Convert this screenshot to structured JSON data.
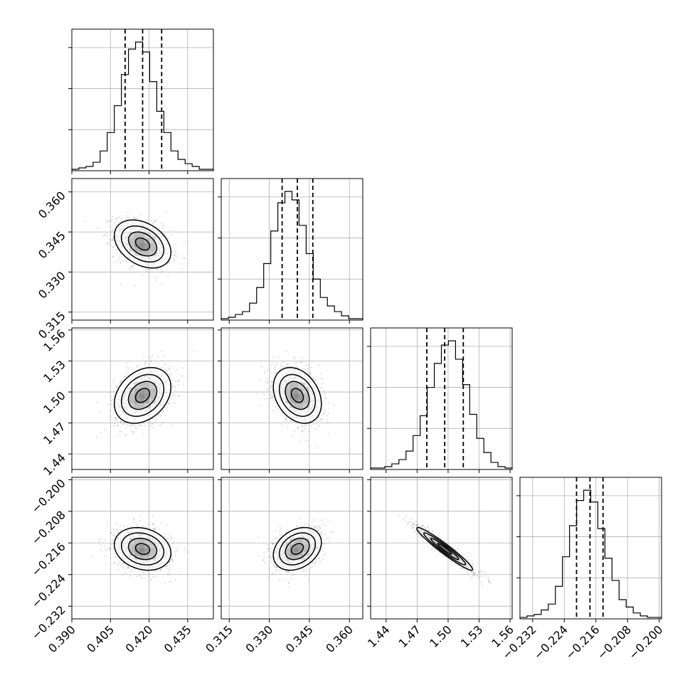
{
  "chart_data": {
    "type": "corner",
    "parameters": [
      {
        "range": [
          0.39,
          0.445
        ],
        "ticks": [
          0.39,
          0.405,
          0.42,
          0.435
        ],
        "tick_labels": [
          "0.390",
          "0.405",
          "0.420",
          "0.435"
        ],
        "quantiles": [
          0.4107,
          0.4175,
          0.4249
        ],
        "hist_counts": [
          1,
          2,
          3,
          6,
          14,
          27,
          46,
          68,
          86,
          91,
          84,
          63,
          42,
          27,
          14,
          8,
          5,
          3,
          1,
          1
        ]
      },
      {
        "range": [
          0.312,
          0.365
        ],
        "ticks": [
          0.315,
          0.33,
          0.345,
          0.36
        ],
        "tick_labels": [
          "0.315",
          "0.330",
          "0.345",
          "0.360"
        ],
        "quantiles": [
          0.3348,
          0.3405,
          0.3463
        ],
        "hist_counts": [
          1,
          2,
          4,
          6,
          12,
          23,
          40,
          63,
          83,
          91,
          85,
          67,
          47,
          29,
          16,
          10,
          6,
          3,
          1,
          1
        ]
      },
      {
        "range": [
          1.425,
          1.562
        ],
        "ticks": [
          1.44,
          1.47,
          1.5,
          1.53,
          1.56
        ],
        "tick_labels": [
          "1.44",
          "1.47",
          "1.50",
          "1.53",
          "1.56"
        ],
        "quantiles": [
          1.4794,
          1.4967,
          1.5147
        ],
        "hist_counts": [
          1,
          1,
          2,
          4,
          7,
          13,
          24,
          38,
          58,
          75,
          88,
          91,
          78,
          60,
          39,
          22,
          12,
          5,
          2,
          1
        ]
      },
      {
        "range": [
          -0.2352,
          -0.1994
        ],
        "ticks": [
          -0.232,
          -0.224,
          -0.216,
          -0.208,
          -0.2
        ],
        "tick_labels": [
          "−0.232",
          "−0.224",
          "−0.216",
          "−0.208",
          "−0.200"
        ],
        "quantiles": [
          -0.2209,
          -0.2175,
          -0.2142
        ],
        "hist_counts": [
          1,
          2,
          3,
          6,
          10,
          22,
          42,
          63,
          80,
          87,
          79,
          61,
          41,
          26,
          13,
          8,
          4,
          2,
          1,
          1
        ]
      }
    ],
    "pairs": [
      {
        "row": 1,
        "col": 0,
        "rho": -0.35
      },
      {
        "row": 2,
        "col": 0,
        "rho": 0.3
      },
      {
        "row": 2,
        "col": 1,
        "rho": -0.3
      },
      {
        "row": 3,
        "col": 0,
        "rho": -0.2
      },
      {
        "row": 3,
        "col": 1,
        "rho": 0.3
      },
      {
        "row": 3,
        "col": 2,
        "rho": -0.96
      }
    ],
    "means": [
      0.4175,
      0.3405,
      1.4967,
      -0.2175
    ],
    "sds": [
      0.0055,
      0.0045,
      0.0135,
      0.0027
    ],
    "grid": true,
    "contour_levels_sigma": [
      0.5,
      1.0,
      1.5,
      2.0
    ]
  }
}
